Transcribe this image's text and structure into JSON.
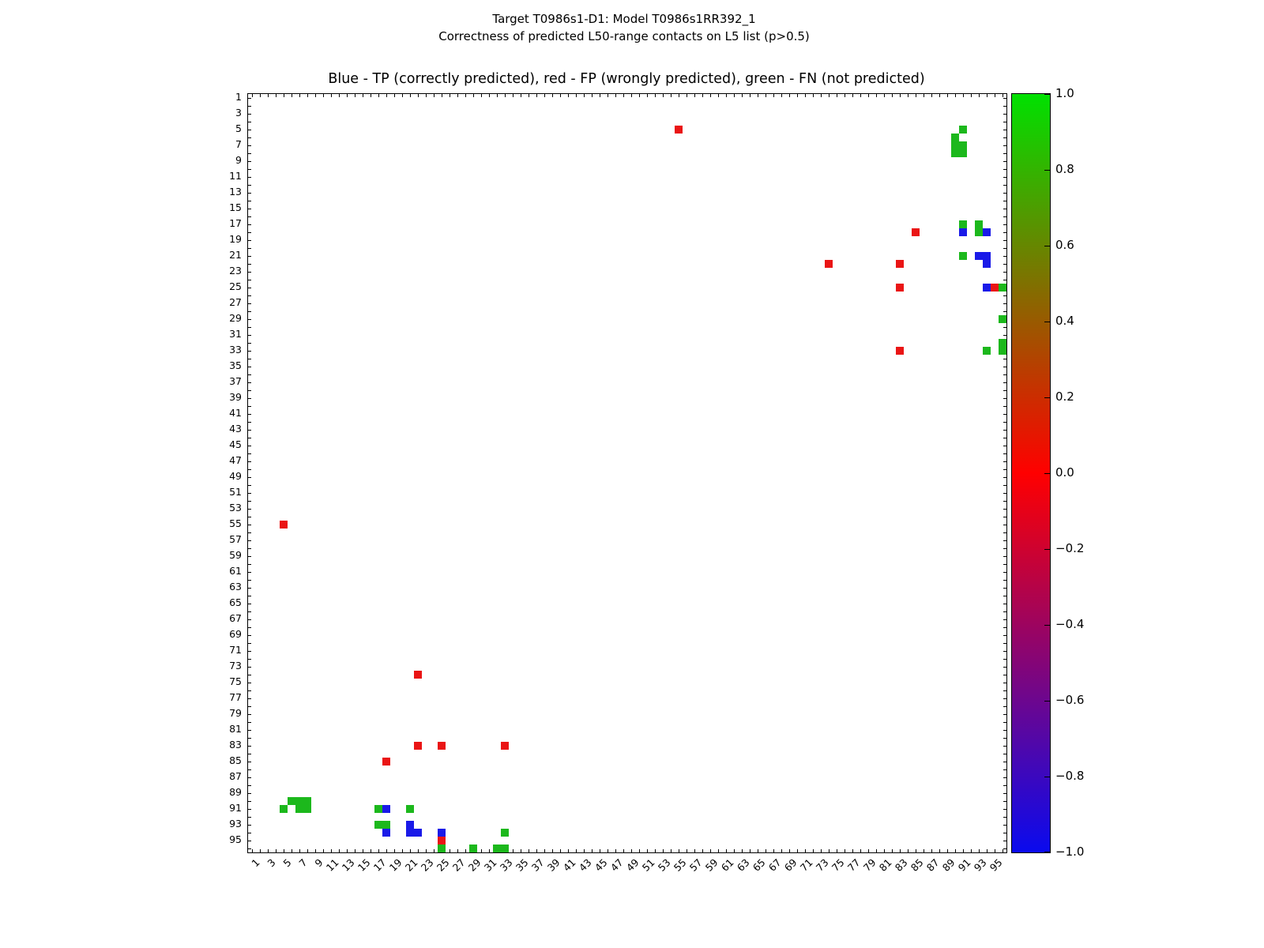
{
  "figure": {
    "suptitle_line1": "Target T0986s1-D1: Model T0986s1RR392_1",
    "suptitle_line2": "Correctness of predicted L50-range contacts on L5 list (p>0.5)",
    "axes_title": "Blue - TP (correctly predicted), red - FP (wrongly predicted), green - FN (not predicted)"
  },
  "chart_data": {
    "type": "heatmap",
    "title": "Target T0986s1-D1: Model T0986s1RR392_1 — Correctness of predicted L50-range contacts on L5 list (p>0.5)",
    "subtitle": "Blue - TP (correctly predicted), red - FP (wrongly predicted), green - FN (not predicted)",
    "x_range": [
      0.5,
      96.5
    ],
    "y_range": [
      0.5,
      96.5
    ],
    "y_inverted": true,
    "grid": false,
    "cell_size_units": 1,
    "axis_tick_step_minor": 1,
    "axis_label_values": [
      1,
      3,
      5,
      7,
      9,
      11,
      13,
      15,
      17,
      19,
      21,
      23,
      25,
      27,
      29,
      31,
      33,
      35,
      37,
      39,
      41,
      43,
      45,
      47,
      49,
      51,
      53,
      55,
      57,
      59,
      61,
      63,
      65,
      67,
      69,
      71,
      73,
      75,
      77,
      79,
      81,
      83,
      85,
      87,
      89,
      91,
      93,
      95
    ],
    "legend": {
      "TP": "correctly predicted",
      "FP": "wrongly predicted",
      "FN": "not predicted"
    },
    "colors": {
      "TP": "#1a1ae8",
      "FP": "#ea1515",
      "FN": "#1cb81c"
    },
    "points": [
      {
        "x": 55,
        "y": 5,
        "c": "FP"
      },
      {
        "x": 91,
        "y": 5,
        "c": "FN"
      },
      {
        "x": 90,
        "y": 6,
        "c": "FN"
      },
      {
        "x": 90,
        "y": 7,
        "c": "FN"
      },
      {
        "x": 91,
        "y": 7,
        "c": "FN"
      },
      {
        "x": 90,
        "y": 8,
        "c": "FN"
      },
      {
        "x": 91,
        "y": 8,
        "c": "FN"
      },
      {
        "x": 91,
        "y": 17,
        "c": "FN"
      },
      {
        "x": 93,
        "y": 17,
        "c": "FN"
      },
      {
        "x": 85,
        "y": 18,
        "c": "FP"
      },
      {
        "x": 91,
        "y": 18,
        "c": "TP"
      },
      {
        "x": 93,
        "y": 18,
        "c": "FN"
      },
      {
        "x": 94,
        "y": 18,
        "c": "TP"
      },
      {
        "x": 91,
        "y": 21,
        "c": "FN"
      },
      {
        "x": 93,
        "y": 21,
        "c": "TP"
      },
      {
        "x": 94,
        "y": 21,
        "c": "TP"
      },
      {
        "x": 74,
        "y": 22,
        "c": "FP"
      },
      {
        "x": 83,
        "y": 22,
        "c": "FP"
      },
      {
        "x": 94,
        "y": 22,
        "c": "TP"
      },
      {
        "x": 83,
        "y": 25,
        "c": "FP"
      },
      {
        "x": 94,
        "y": 25,
        "c": "TP"
      },
      {
        "x": 95,
        "y": 25,
        "c": "FP"
      },
      {
        "x": 96,
        "y": 25,
        "c": "FN"
      },
      {
        "x": 96,
        "y": 29,
        "c": "FN"
      },
      {
        "x": 96,
        "y": 32,
        "c": "FN"
      },
      {
        "x": 83,
        "y": 33,
        "c": "FP"
      },
      {
        "x": 94,
        "y": 33,
        "c": "FN"
      },
      {
        "x": 96,
        "y": 33,
        "c": "FN"
      },
      {
        "x": 5,
        "y": 55,
        "c": "FP"
      },
      {
        "x": 22,
        "y": 74,
        "c": "FP"
      },
      {
        "x": 22,
        "y": 83,
        "c": "FP"
      },
      {
        "x": 25,
        "y": 83,
        "c": "FP"
      },
      {
        "x": 33,
        "y": 83,
        "c": "FP"
      },
      {
        "x": 18,
        "y": 85,
        "c": "FP"
      },
      {
        "x": 6,
        "y": 90,
        "c": "FN"
      },
      {
        "x": 7,
        "y": 90,
        "c": "FN"
      },
      {
        "x": 8,
        "y": 90,
        "c": "FN"
      },
      {
        "x": 5,
        "y": 91,
        "c": "FN"
      },
      {
        "x": 7,
        "y": 91,
        "c": "FN"
      },
      {
        "x": 8,
        "y": 91,
        "c": "FN"
      },
      {
        "x": 17,
        "y": 91,
        "c": "FN"
      },
      {
        "x": 18,
        "y": 91,
        "c": "TP"
      },
      {
        "x": 21,
        "y": 91,
        "c": "FN"
      },
      {
        "x": 17,
        "y": 93,
        "c": "FN"
      },
      {
        "x": 18,
        "y": 93,
        "c": "FN"
      },
      {
        "x": 21,
        "y": 93,
        "c": "TP"
      },
      {
        "x": 18,
        "y": 94,
        "c": "TP"
      },
      {
        "x": 21,
        "y": 94,
        "c": "TP"
      },
      {
        "x": 22,
        "y": 94,
        "c": "TP"
      },
      {
        "x": 25,
        "y": 94,
        "c": "TP"
      },
      {
        "x": 33,
        "y": 94,
        "c": "FN"
      },
      {
        "x": 25,
        "y": 95,
        "c": "FP"
      },
      {
        "x": 25,
        "y": 96,
        "c": "FN"
      },
      {
        "x": 29,
        "y": 96,
        "c": "FN"
      },
      {
        "x": 32,
        "y": 96,
        "c": "FN"
      },
      {
        "x": 33,
        "y": 96,
        "c": "FN"
      }
    ],
    "colorbar": {
      "min": -1.0,
      "max": 1.0,
      "orientation": "vertical",
      "tick_labels": [
        "1.0",
        "0.8",
        "0.6",
        "0.4",
        "0.2",
        "0.0",
        "−0.2",
        "−0.4",
        "−0.6",
        "−0.8",
        "−1.0"
      ],
      "gradient_stops": [
        {
          "value": 1.0,
          "color": "#00e100"
        },
        {
          "value": 0.0,
          "color": "#ff0000"
        },
        {
          "value": -1.0,
          "color": "#0a0aee"
        }
      ]
    }
  }
}
